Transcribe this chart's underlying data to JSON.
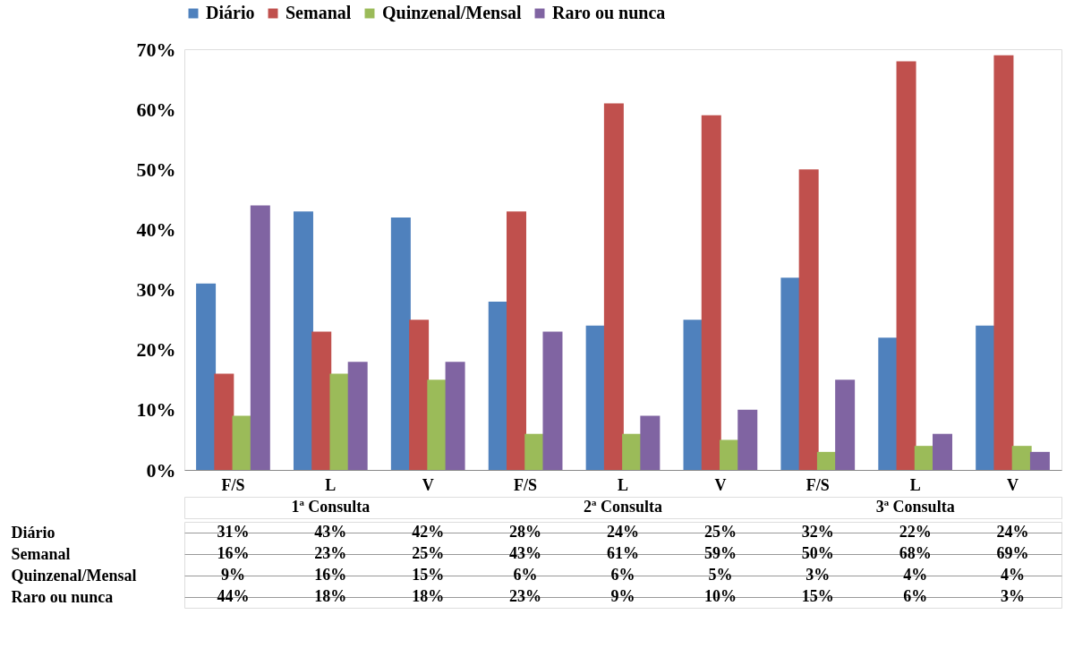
{
  "chart_data": {
    "type": "bar",
    "categories": [
      "F/S",
      "L",
      "V",
      "F/S",
      "L",
      "V",
      "F/S",
      "L",
      "V"
    ],
    "annotations": [
      "1ª Consulta",
      "2ª Consulta",
      "3ª Consulta"
    ],
    "series": [
      {
        "name": "Diário",
        "color": "#4f81bd",
        "values": [
          31,
          43,
          42,
          28,
          24,
          25,
          32,
          22,
          24
        ],
        "value_labels": [
          "31%",
          "43%",
          "42%",
          "28%",
          "24%",
          "25%",
          "32%",
          "22%",
          "24%"
        ]
      },
      {
        "name": "Semanal",
        "color": "#c0504d",
        "values": [
          16,
          23,
          25,
          43,
          61,
          59,
          50,
          68,
          69
        ],
        "value_labels": [
          "16%",
          "23%",
          "25%",
          "43%",
          "61%",
          "59%",
          "50%",
          "68%",
          "69%"
        ]
      },
      {
        "name": "Quinzenal/Mensal",
        "color": "#9bbb59",
        "values": [
          9,
          16,
          15,
          6,
          6,
          5,
          3,
          4,
          4
        ],
        "value_labels": [
          "9%",
          "16%",
          "15%",
          "6%",
          "6%",
          "5%",
          "3%",
          "4%",
          "4%"
        ]
      },
      {
        "name": "Raro ou nunca",
        "color": "#8064a2",
        "values": [
          44,
          18,
          18,
          23,
          9,
          10,
          15,
          6,
          3
        ],
        "value_labels": [
          "44%",
          "18%",
          "18%",
          "23%",
          "9%",
          "10%",
          "15%",
          "6%",
          "3%"
        ]
      }
    ],
    "ylim": [
      0,
      70
    ],
    "yticks": [
      {
        "value": 0,
        "label": "0%"
      },
      {
        "value": 10,
        "label": "10%"
      },
      {
        "value": 20,
        "label": "20%"
      },
      {
        "value": 30,
        "label": "30%"
      },
      {
        "value": 40,
        "label": "40%"
      },
      {
        "value": 50,
        "label": "50%"
      },
      {
        "value": 60,
        "label": "60%"
      },
      {
        "value": 70,
        "label": "70%"
      }
    ],
    "grid": false,
    "legend": "top"
  }
}
